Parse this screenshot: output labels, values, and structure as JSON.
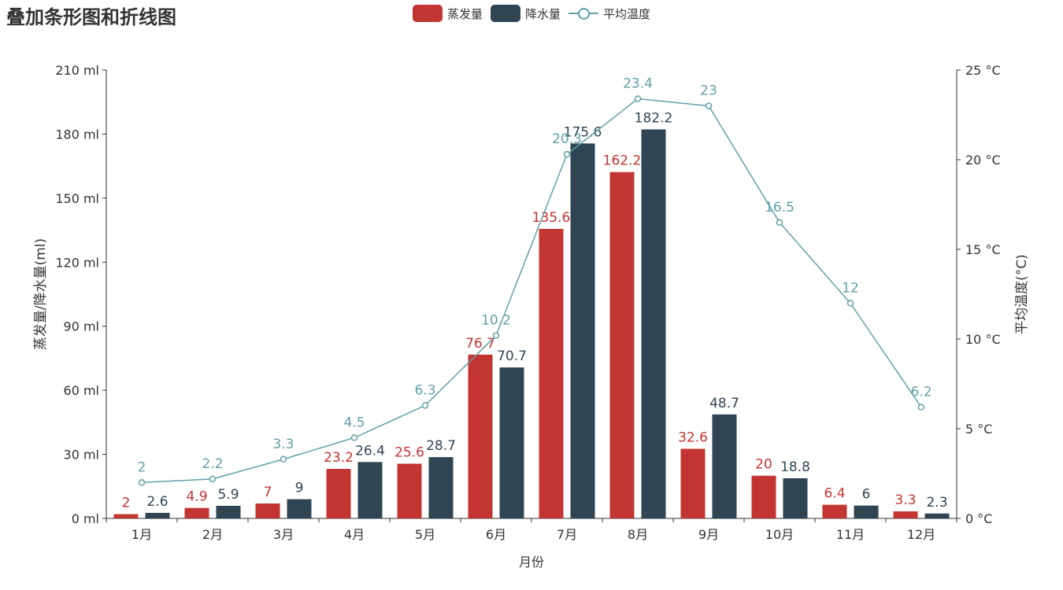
{
  "title": "叠加条形图和折线图",
  "legend": [
    {
      "name": "蒸发量",
      "color": "#c23531",
      "kind": "bar"
    },
    {
      "name": "降水量",
      "color": "#2f4554",
      "kind": "bar"
    },
    {
      "name": "平均温度",
      "color": "#61a0a8",
      "kind": "line"
    }
  ],
  "chart_data": {
    "type": "bar",
    "title": "叠加条形图和折线图",
    "categories": [
      "1月",
      "2月",
      "3月",
      "4月",
      "5月",
      "6月",
      "7月",
      "8月",
      "9月",
      "10月",
      "11月",
      "12月"
    ],
    "xlabel": "月份",
    "ylabel": "蒸发量/降水量(ml)",
    "y2label": "平均温度(°C)",
    "ylim": [
      0,
      210
    ],
    "yticks": [
      0,
      30,
      60,
      90,
      120,
      150,
      180,
      210
    ],
    "ytick_suffix": " ml",
    "y2lim": [
      0,
      25
    ],
    "y2ticks": [
      0,
      5,
      10,
      15,
      20,
      25
    ],
    "y2tick_suffix": " °C",
    "legend_position": "top-center",
    "grid": false,
    "series": [
      {
        "name": "蒸发量",
        "type": "bar",
        "color": "#c23531",
        "values": [
          2,
          4.9,
          7,
          23.2,
          25.6,
          76.7,
          135.6,
          162.2,
          32.6,
          20,
          6.4,
          3.3
        ]
      },
      {
        "name": "降水量",
        "type": "bar",
        "color": "#2f4554",
        "values": [
          2.6,
          5.9,
          9,
          26.4,
          28.7,
          70.7,
          175.6,
          182.2,
          48.7,
          18.8,
          6,
          2.3
        ]
      },
      {
        "name": "平均温度",
        "type": "line",
        "axis": "right",
        "color": "#61a0a8",
        "values": [
          2,
          2.2,
          3.3,
          4.5,
          6.3,
          10.2,
          20.3,
          23.4,
          23,
          16.5,
          12,
          6.2
        ]
      }
    ]
  }
}
